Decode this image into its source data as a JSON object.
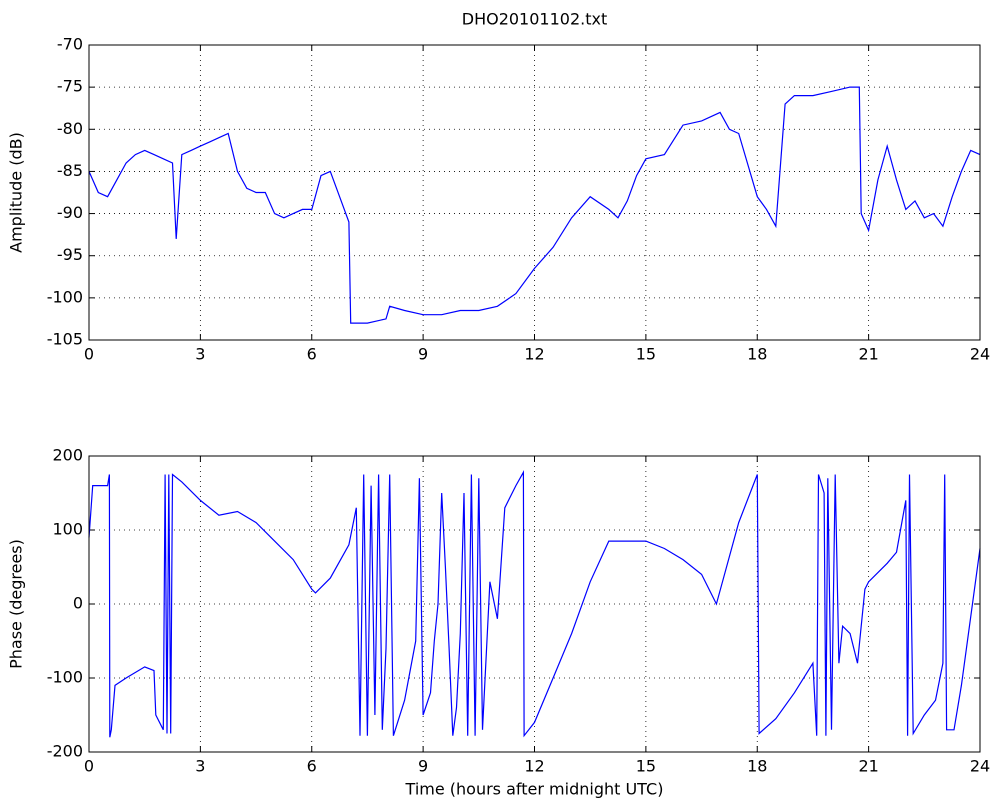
{
  "chart_data": [
    {
      "type": "line",
      "title": "DHO20101102.txt",
      "ylabel": "Amplitude (dB)",
      "color": "#0000ff",
      "grid": true,
      "xlim": [
        0,
        24
      ],
      "xticks": [
        0,
        3,
        6,
        9,
        12,
        15,
        18,
        21,
        24
      ],
      "ylim": [
        -105,
        -70
      ],
      "yticks": [
        -105,
        -100,
        -95,
        -90,
        -85,
        -80,
        -75,
        -70
      ],
      "x": [
        0,
        0.25,
        0.5,
        0.75,
        1,
        1.25,
        1.5,
        1.75,
        2,
        2.25,
        2.35,
        2.5,
        2.75,
        3,
        3.25,
        3.5,
        3.75,
        4,
        4.25,
        4.5,
        4.75,
        5,
        5.25,
        5.5,
        5.75,
        6,
        6.25,
        6.5,
        6.75,
        7,
        7.05,
        7.5,
        8,
        8.1,
        8.5,
        9,
        9.5,
        10,
        10.5,
        11,
        11.5,
        12,
        12.5,
        13,
        13.5,
        14,
        14.25,
        14.5,
        14.75,
        15,
        15.5,
        16,
        16.5,
        17,
        17.25,
        17.5,
        18,
        18.25,
        18.5,
        18.75,
        19,
        19.5,
        20,
        20.5,
        20.75,
        20.8,
        21,
        21.25,
        21.5,
        21.75,
        22,
        22.25,
        22.5,
        22.75,
        23,
        23.25,
        23.5,
        23.75,
        24
      ],
      "values": [
        -85,
        -87.5,
        -88,
        -86,
        -84,
        -83,
        -82.5,
        -83,
        -83.5,
        -84,
        -93,
        -83,
        -82.5,
        -82,
        -81.5,
        -81,
        -80.5,
        -85,
        -87,
        -87.5,
        -87.5,
        -90,
        -90.5,
        -90,
        -89.5,
        -89.5,
        -85.5,
        -85,
        -88,
        -91,
        -103,
        -103,
        -102.5,
        -101,
        -101.5,
        -102,
        -102,
        -101.5,
        -101.5,
        -101,
        -99.5,
        -96.5,
        -94,
        -90.5,
        -88,
        -89.5,
        -90.5,
        -88.5,
        -85.5,
        -83.5,
        -83,
        -79.5,
        -79,
        -78,
        -80,
        -80.5,
        -88,
        -89.5,
        -91.5,
        -77,
        -76,
        -76,
        -75.5,
        -75,
        -75,
        -90,
        -92,
        -86,
        -82,
        -86,
        -89.5,
        -88.5,
        -90.5,
        -90,
        -91.5,
        -88,
        -85,
        -82.5,
        -83
      ]
    },
    {
      "type": "line",
      "xlabel": "Time (hours after midnight UTC)",
      "ylabel": "Phase (degrees)",
      "color": "#0000ff",
      "grid": true,
      "xlim": [
        0,
        24
      ],
      "xticks": [
        0,
        3,
        6,
        9,
        12,
        15,
        18,
        21,
        24
      ],
      "ylim": [
        -200,
        200
      ],
      "yticks": [
        -200,
        -100,
        0,
        100,
        200
      ],
      "x": [
        0,
        0.1,
        0.5,
        0.55,
        0.56,
        0.6,
        0.7,
        1,
        1.5,
        1.75,
        1.8,
        2,
        2.05,
        2.1,
        2.15,
        2.2,
        2.25,
        2.5,
        3,
        3.5,
        4,
        4.5,
        5,
        5.5,
        6,
        6.1,
        6.5,
        7,
        7.2,
        7.3,
        7.4,
        7.5,
        7.6,
        7.7,
        7.8,
        7.9,
        8,
        8.1,
        8.2,
        8.5,
        8.8,
        8.9,
        9,
        9.2,
        9.3,
        9.4,
        9.5,
        9.6,
        9.7,
        9.8,
        9.9,
        10,
        10.1,
        10.2,
        10.3,
        10.4,
        10.5,
        10.6,
        10.8,
        11,
        11.2,
        11.5,
        11.7,
        11.72,
        12,
        12.5,
        13,
        13.5,
        14,
        14.5,
        15,
        15.5,
        16,
        16.5,
        16.9,
        17.5,
        18,
        18.05,
        18.5,
        19,
        19.5,
        19.6,
        19.65,
        19.8,
        19.85,
        19.9,
        20,
        20.1,
        20.2,
        20.3,
        20.5,
        20.7,
        20.9,
        21,
        21.5,
        21.75,
        22,
        22.05,
        22.1,
        22.2,
        22.5,
        22.8,
        23,
        23.05,
        23.1,
        23.3,
        23.5,
        24
      ],
      "values": [
        90,
        160,
        160,
        175,
        -180,
        -170,
        -110,
        -100,
        -85,
        -90,
        -150,
        -170,
        175,
        -175,
        175,
        -175,
        175,
        165,
        140,
        120,
        125,
        110,
        85,
        60,
        20,
        15,
        35,
        80,
        130,
        -178,
        175,
        -178,
        160,
        -150,
        175,
        -170,
        -60,
        175,
        -178,
        -130,
        -50,
        170,
        -150,
        -120,
        -50,
        0,
        150,
        50,
        -60,
        -178,
        -140,
        -40,
        150,
        -178,
        175,
        -178,
        170,
        -170,
        30,
        -20,
        130,
        160,
        178,
        -178,
        -160,
        -100,
        -40,
        30,
        85,
        85,
        85,
        75,
        60,
        40,
        0,
        110,
        175,
        -175,
        -155,
        -120,
        -80,
        -178,
        175,
        150,
        -178,
        170,
        -170,
        175,
        -80,
        -30,
        -40,
        -80,
        20,
        30,
        55,
        70,
        140,
        -178,
        175,
        -175,
        -150,
        -130,
        -80,
        175,
        -170,
        -170,
        -110,
        75
      ]
    }
  ]
}
